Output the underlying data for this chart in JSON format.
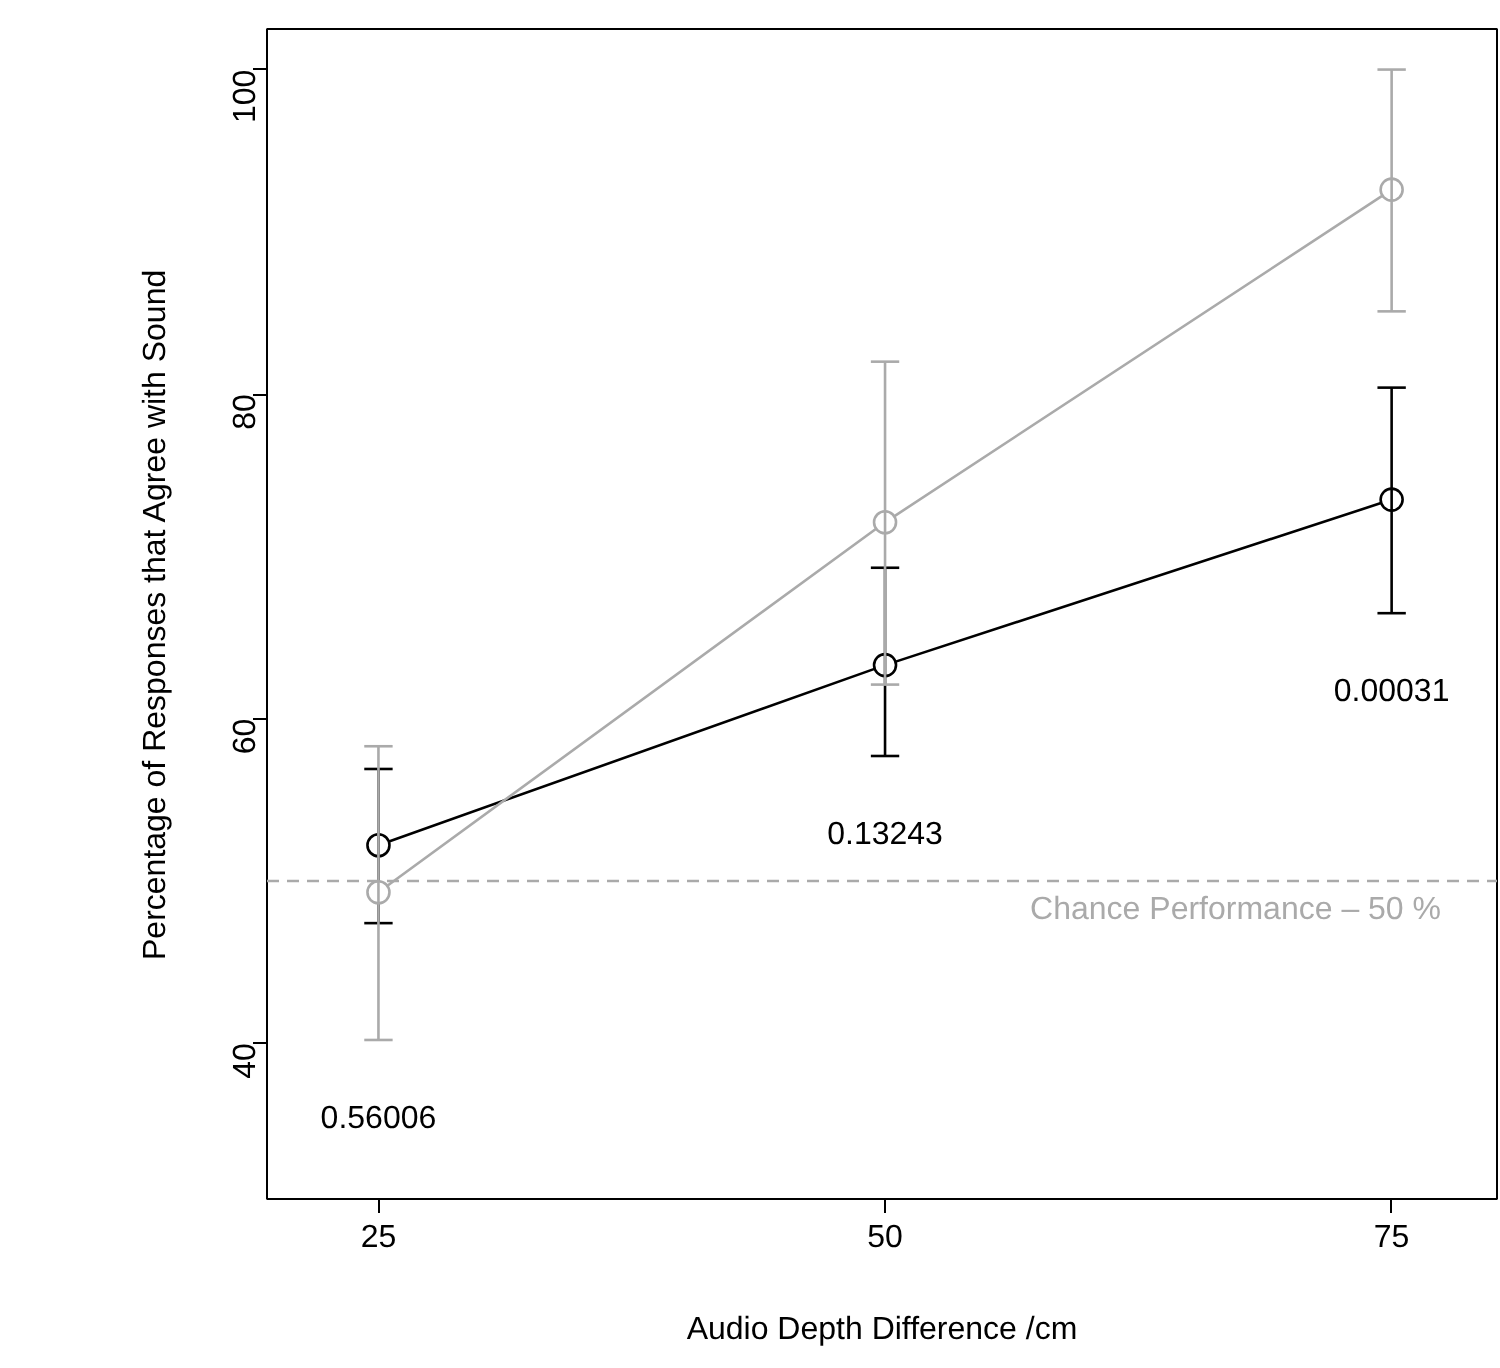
{
  "chart_data": {
    "type": "line",
    "xlabel": "Audio Depth Difference /cm",
    "ylabel": "Percentage of Responses that Agree with Sound",
    "x": [
      25,
      50,
      75
    ],
    "series": [
      {
        "color": "#000000",
        "values": [
          52.2,
          63.3,
          73.5
        ],
        "errors": [
          [
            47.4,
            56.9
          ],
          [
            57.7,
            69.3
          ],
          [
            66.5,
            80.4
          ]
        ]
      },
      {
        "color": "#aaaaaa",
        "values": [
          49.3,
          72.1,
          92.6
        ],
        "errors": [
          [
            40.2,
            58.3
          ],
          [
            62.1,
            82.0
          ],
          [
            85.1,
            100.0
          ]
        ]
      }
    ],
    "xlim": [
      19.5,
      80.2
    ],
    "ylim": [
      30.4,
      102.5
    ],
    "xticks": [
      25,
      50,
      75
    ],
    "yticks": [
      40,
      60,
      80,
      100
    ],
    "ref_lines": [
      {
        "axis": "y",
        "value": 50,
        "label": "Chance Performance – 50 %",
        "color": "#aaaaaa",
        "line_style": "dashed"
      }
    ],
    "annotations": [
      "0.56006",
      "0.13243",
      "0.00031"
    ],
    "marker": "circle",
    "line_style": "solid",
    "grid": false
  }
}
